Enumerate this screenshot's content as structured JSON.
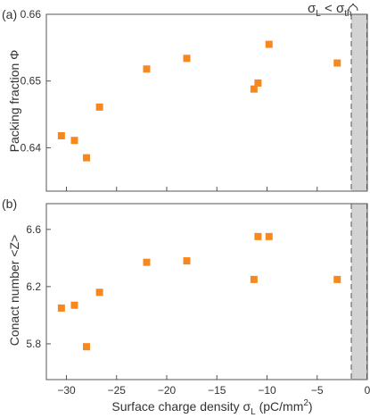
{
  "chart_data": [
    {
      "type": "scatter",
      "panel_label": "(a)",
      "ylabel": "Packing fraction Φ",
      "xlim": [
        -32,
        0
      ],
      "ylim": [
        0.6335,
        0.66
      ],
      "yticks": [
        0.64,
        0.65,
        0.66
      ],
      "ytick_labels": [
        "0.64",
        "0.65",
        "0.66"
      ],
      "x": [
        -30.5,
        -29.2,
        -28.0,
        -26.7,
        -22.0,
        -18.0,
        -11.3,
        -10.9,
        -9.8,
        -3.0
      ],
      "y": [
        0.6418,
        0.6411,
        0.6385,
        0.6461,
        0.6518,
        0.6534,
        0.6488,
        0.6497,
        0.6555,
        0.6527
      ],
      "marker_color": "#F5891F",
      "threshold": {
        "label": "σ",
        "label_sub": "L",
        "operator": " < ",
        "label2": "σ",
        "label2_sub": "th",
        "x_range": [
          -1.6,
          0
        ],
        "fill": "#D3D3D3"
      }
    },
    {
      "type": "scatter",
      "panel_label": "(b)",
      "ylabel": "Conact number <Z>",
      "xlim": [
        -32,
        0
      ],
      "ylim": [
        5.55,
        6.78
      ],
      "yticks": [
        5.8,
        6.2,
        6.6
      ],
      "ytick_labels": [
        "5.8",
        "6.2",
        "6.6"
      ],
      "x": [
        -30.5,
        -29.2,
        -28.0,
        -26.7,
        -22.0,
        -18.0,
        -11.3,
        -10.9,
        -9.8,
        -3.0
      ],
      "y": [
        6.05,
        6.07,
        5.78,
        6.16,
        6.37,
        6.38,
        6.25,
        6.55,
        6.55,
        6.25
      ],
      "marker_color": "#F5891F",
      "threshold": {
        "x_range": [
          -1.6,
          0
        ],
        "fill": "#D3D3D3"
      }
    }
  ],
  "xaxis": {
    "ticks": [
      -30,
      -25,
      -20,
      -15,
      -10,
      -5,
      0
    ],
    "tick_labels": [
      "−30",
      "−25",
      "−20",
      "−15",
      "−10",
      "−5",
      "0"
    ],
    "label": "Surface charge density σ",
    "label_sub": "L",
    "label_unit": " (pC/mm",
    "label_sup": "2",
    "label_close": ")"
  }
}
